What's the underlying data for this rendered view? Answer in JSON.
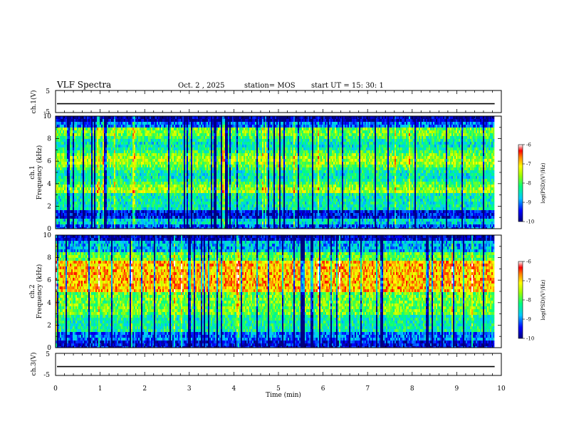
{
  "header": {
    "title": "VLF Spectra",
    "date": "Oct. 2 , 2025",
    "station": "station= MOS",
    "start_ut": "start  UT =   15: 30: 1"
  },
  "chart_data": [
    {
      "type": "line",
      "panel": "ch1-voltage",
      "ylabel": "ch.1(V)",
      "ylim": [
        -5,
        5
      ],
      "yticks": [
        "5",
        "-5"
      ],
      "trace_level": -1
    },
    {
      "type": "heatmap",
      "panel": "ch1-spectrogram",
      "ylabel_1": "ch.1",
      "ylabel_2": "Frequency (kHz)",
      "ylim": [
        0,
        10
      ],
      "yticks": [
        "0",
        "2",
        "4",
        "6",
        "8",
        "10"
      ],
      "xlim": [
        0,
        9.85
      ],
      "colorbar": {
        "label": "log(PSD)(V²/Hz)",
        "range": [
          -10,
          -6
        ],
        "ticks": [
          "-6",
          "-7",
          "-8",
          "-9",
          "-10"
        ]
      }
    },
    {
      "type": "heatmap",
      "panel": "ch2-spectrogram",
      "ylabel_1": "ch.2",
      "ylabel_2": "Frequency (kHz)",
      "ylim": [
        0,
        10
      ],
      "yticks": [
        "0",
        "2",
        "4",
        "6",
        "8",
        "10"
      ],
      "xlim": [
        0,
        9.85
      ],
      "colorbar": {
        "label": "log(PSD)(V²/Hz)",
        "range": [
          -10,
          -6
        ],
        "ticks": [
          "-6",
          "-7",
          "-8",
          "-9",
          "-10"
        ]
      }
    },
    {
      "type": "line",
      "panel": "ch3-voltage",
      "ylabel": "ch.3(V)",
      "ylim": [
        -5,
        5
      ],
      "yticks": [
        "5",
        "-5"
      ],
      "trace_level": -1
    }
  ],
  "xaxis": {
    "label": "Time (min)",
    "ticks": [
      "0",
      "1",
      "2",
      "3",
      "4",
      "5",
      "6",
      "7",
      "8",
      "9",
      "10"
    ],
    "range": [
      0,
      10
    ]
  }
}
